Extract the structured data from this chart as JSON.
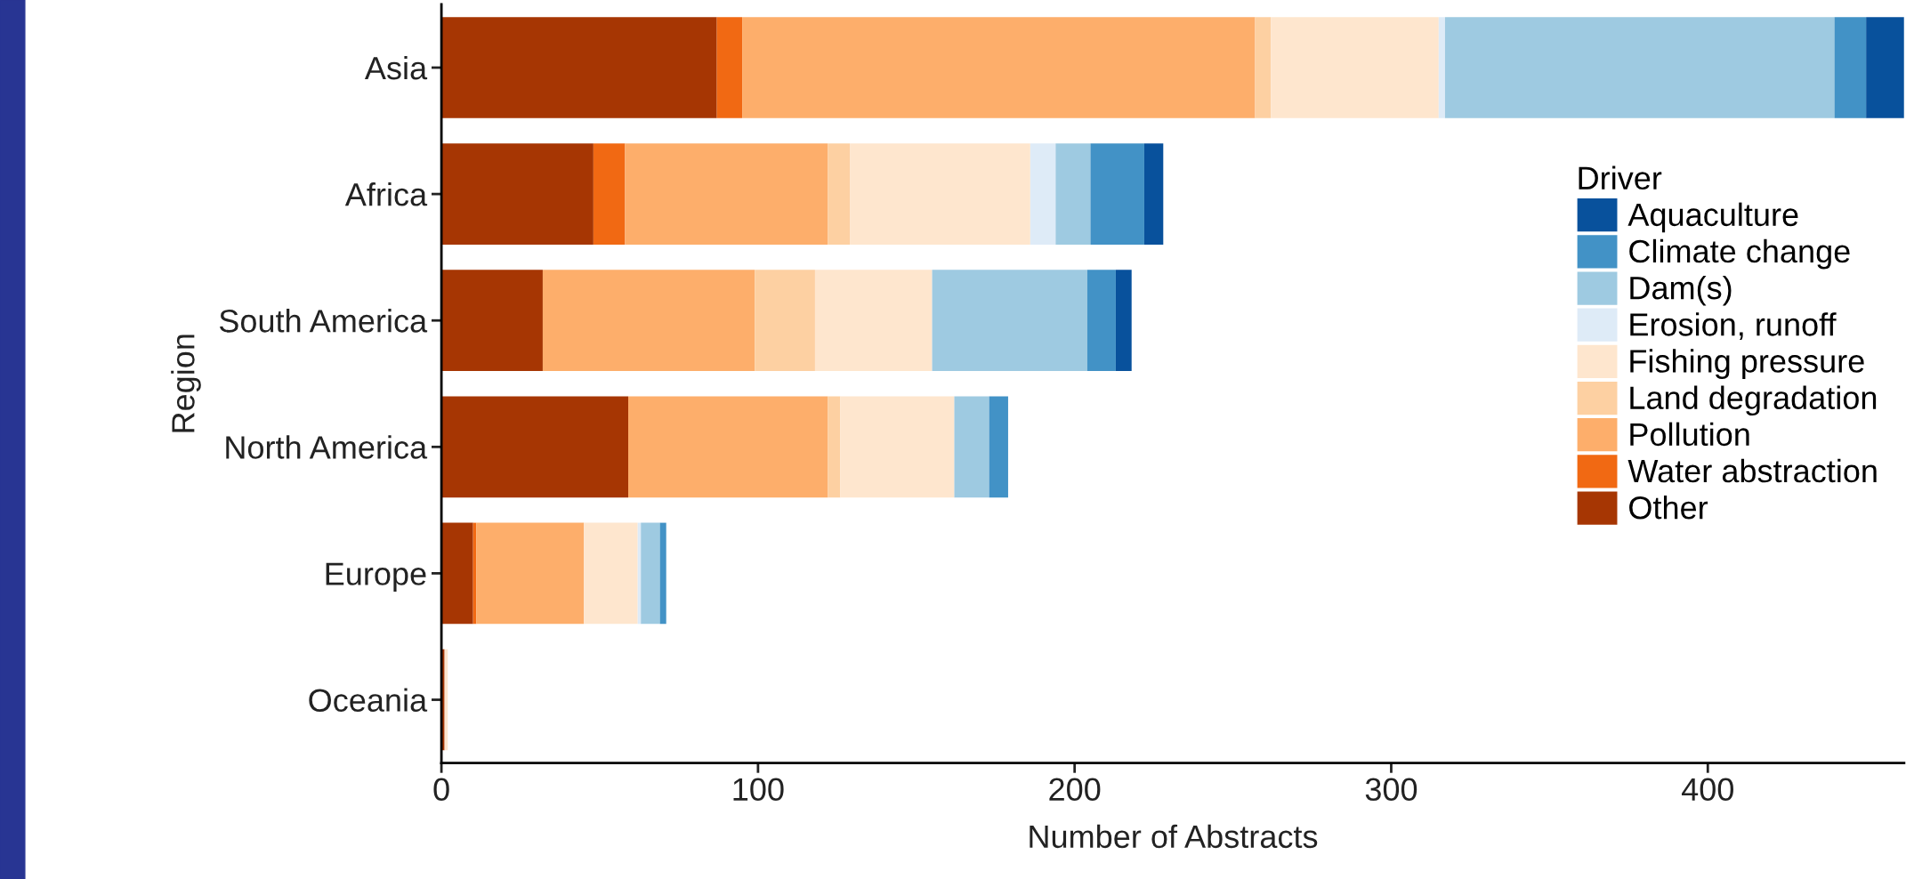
{
  "chart_data": {
    "type": "bar",
    "orientation": "horizontal",
    "stacked": true,
    "categories": [
      "Asia",
      "Africa",
      "South America",
      "North America",
      "Europe",
      "Oceania"
    ],
    "xlabel": "Number of Abstracts",
    "ylabel": "Region",
    "legend_title": "Driver",
    "legend": "right",
    "xlim": [
      0,
      462
    ],
    "xticks": [
      0,
      100,
      200,
      300,
      400
    ],
    "grid": false,
    "series": [
      {
        "name": "Other",
        "color": "#a63603",
        "values": [
          87,
          48,
          32,
          59,
          10,
          1
        ]
      },
      {
        "name": "Water abstraction",
        "color": "#f16913",
        "values": [
          8,
          10,
          0,
          0,
          1,
          0
        ]
      },
      {
        "name": "Pollution",
        "color": "#fdae6b",
        "values": [
          162,
          64,
          67,
          63,
          34,
          0
        ]
      },
      {
        "name": "Land degradation",
        "color": "#fdd0a2",
        "values": [
          5,
          7,
          19,
          4,
          0,
          0
        ]
      },
      {
        "name": "Fishing pressure",
        "color": "#fee6ce",
        "values": [
          53,
          57,
          37,
          36,
          17,
          1
        ]
      },
      {
        "name": "Erosion, runoff",
        "color": "#deebf7",
        "values": [
          2,
          8,
          0,
          0,
          1,
          0
        ]
      },
      {
        "name": "Dam(s)",
        "color": "#9ecae1",
        "values": [
          123,
          11,
          49,
          11,
          6,
          0
        ]
      },
      {
        "name": "Climate change",
        "color": "#4292c6",
        "values": [
          10,
          17,
          9,
          6,
          2,
          0
        ]
      },
      {
        "name": "Aquaculture",
        "color": "#08519c",
        "values": [
          12,
          6,
          5,
          0,
          0,
          0
        ]
      }
    ]
  }
}
